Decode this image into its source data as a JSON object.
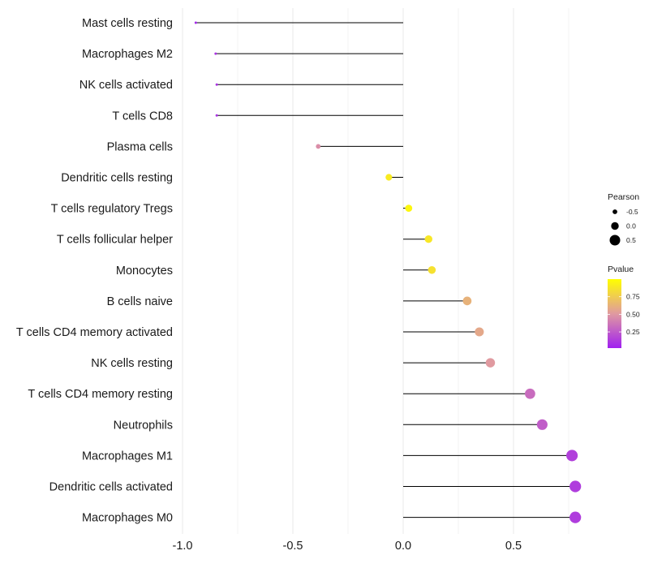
{
  "chart_data": {
    "type": "lollipop",
    "title": "",
    "xlabel": "",
    "ylabel": "",
    "xlim": [
      -1.0,
      0.8
    ],
    "x_ticks": [
      -1.0,
      -0.5,
      0.0,
      0.5
    ],
    "x_tick_labels": [
      "-1.0",
      "-0.5",
      "0.0",
      "0.5"
    ],
    "grid": "vertical major and minor gridlines",
    "categories": [
      {
        "label": "Mast cells resting",
        "pearson": -0.94,
        "pvalue": 0.04
      },
      {
        "label": "Macrophages M2",
        "pearson": -0.85,
        "pvalue": 0.08
      },
      {
        "label": "NK cells activated",
        "pearson": -0.845,
        "pvalue": 0.08
      },
      {
        "label": "T cells CD8",
        "pearson": -0.845,
        "pvalue": 0.08
      },
      {
        "label": "Plasma cells",
        "pearson": -0.385,
        "pvalue": 0.45
      },
      {
        "label": "Dendritic cells resting",
        "pearson": -0.065,
        "pvalue": 0.9
      },
      {
        "label": "T cells regulatory  Tregs ",
        "pearson": 0.025,
        "pvalue": 0.96
      },
      {
        "label": "T cells follicular helper",
        "pearson": 0.115,
        "pvalue": 0.88
      },
      {
        "label": "Monocytes",
        "pearson": 0.13,
        "pvalue": 0.85
      },
      {
        "label": "B cells naive",
        "pearson": 0.29,
        "pvalue": 0.62
      },
      {
        "label": "T cells CD4 memory activated",
        "pearson": 0.345,
        "pvalue": 0.57
      },
      {
        "label": "NK cells resting",
        "pearson": 0.395,
        "pvalue": 0.5
      },
      {
        "label": "T cells CD4 memory resting",
        "pearson": 0.575,
        "pvalue": 0.31
      },
      {
        "label": "Neutrophils",
        "pearson": 0.63,
        "pvalue": 0.25
      },
      {
        "label": "Macrophages M1",
        "pearson": 0.765,
        "pvalue": 0.13
      },
      {
        "label": "Dendritic cells activated",
        "pearson": 0.78,
        "pvalue": 0.12
      },
      {
        "label": "Macrophages M0",
        "pearson": 0.78,
        "pvalue": 0.12
      }
    ],
    "size_legend": {
      "title": "Pearson",
      "entries": [
        {
          "value": -0.5,
          "label": "-0.5"
        },
        {
          "value": 0.0,
          "label": "0.0"
        },
        {
          "value": 0.5,
          "label": "0.5"
        }
      ]
    },
    "color_legend": {
      "title": "Pvalue",
      "range": [
        0.02,
        1.0
      ],
      "ticks": [
        {
          "value": 0.75,
          "label": "0.75"
        },
        {
          "value": 0.5,
          "label": "0.50"
        },
        {
          "value": 0.25,
          "label": "0.25"
        }
      ],
      "color_low": "#a020f0",
      "color_mid": "#e09aa0",
      "color_high": "#ffff00"
    },
    "colors": {
      "stem": "#000000",
      "grid": "#ebebeb"
    }
  }
}
